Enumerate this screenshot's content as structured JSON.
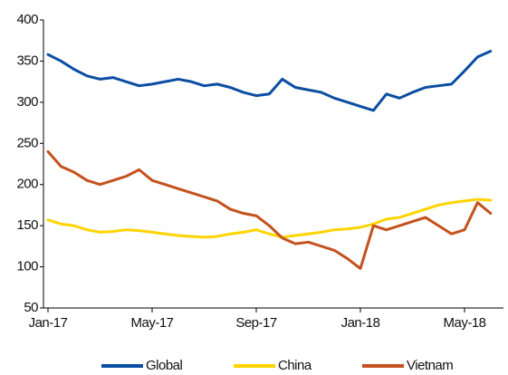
{
  "chart_data": {
    "type": "line",
    "categories": [
      "Jan-17",
      null,
      null,
      null,
      null,
      null,
      null,
      null,
      "May-17",
      null,
      null,
      null,
      null,
      null,
      null,
      null,
      "Sep-17",
      null,
      null,
      null,
      null,
      null,
      null,
      null,
      "Jan-18",
      null,
      null,
      null,
      null,
      null,
      null,
      null,
      "May-18",
      null,
      null
    ],
    "series": [
      {
        "name": "Global",
        "color": "#0b4ea2",
        "values": [
          358,
          350,
          340,
          332,
          328,
          330,
          325,
          320,
          322,
          325,
          328,
          325,
          320,
          322,
          318,
          312,
          308,
          310,
          328,
          318,
          315,
          312,
          305,
          300,
          295,
          290,
          310,
          305,
          312,
          318,
          320,
          322,
          338,
          355,
          362
        ]
      },
      {
        "name": "China",
        "color": "#ffd400",
        "values": [
          157,
          152,
          150,
          145,
          142,
          143,
          145,
          144,
          142,
          140,
          138,
          137,
          136,
          137,
          140,
          142,
          145,
          140,
          136,
          138,
          140,
          142,
          145,
          146,
          148,
          152,
          158,
          160,
          165,
          170,
          175,
          178,
          180,
          182,
          181
        ]
      },
      {
        "name": "Vietnam",
        "color": "#c4521e",
        "values": [
          240,
          222,
          215,
          205,
          200,
          205,
          210,
          218,
          205,
          200,
          195,
          190,
          185,
          180,
          170,
          165,
          162,
          150,
          135,
          128,
          130,
          125,
          120,
          110,
          98,
          150,
          145,
          150,
          155,
          160,
          150,
          140,
          145,
          178,
          165
        ]
      }
    ],
    "ylim": [
      50,
      400
    ],
    "yticks": [
      50,
      100,
      150,
      200,
      250,
      300,
      350,
      400
    ],
    "grid": false,
    "legend": "bottom"
  }
}
